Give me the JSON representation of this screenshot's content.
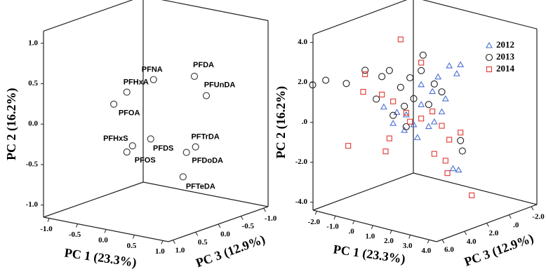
{
  "chart_data": [
    {
      "type": "scatter3d",
      "xlabel": "PC 1 (23.3%)",
      "ylabel": "PC 2 (16.2%)",
      "zlabel": "PC 3 (12.9%)",
      "xlim": [
        -1.1,
        1.1
      ],
      "ylim": [
        -1.15,
        1.15
      ],
      "zlim": [
        1.1,
        -1.1
      ],
      "xticks": [
        {
          "value": -1.0,
          "label": "-1.0"
        },
        {
          "value": -0.5,
          "label": "-0.5"
        },
        {
          "value": 0,
          "label": "0.0"
        },
        {
          "value": 0.5,
          "label": "0.5"
        },
        {
          "value": 1.0,
          "label": "1.0"
        }
      ],
      "yticks": [
        {
          "value": -1.0,
          "label": "-1.0"
        },
        {
          "value": -0.5,
          "label": "-0.5"
        },
        {
          "value": 0,
          "label": "0.0"
        },
        {
          "value": 0.5,
          "label": "0.5"
        },
        {
          "value": 1.0,
          "label": "1.0"
        }
      ],
      "zticks": [
        {
          "value": 1.0,
          "label": "1.0"
        },
        {
          "value": 0.5,
          "label": "0.5"
        },
        {
          "value": 0,
          "label": "0.0"
        },
        {
          "value": -0.5,
          "label": "-0.5"
        },
        {
          "value": -1.0,
          "label": "-1.0"
        }
      ],
      "series": [
        {
          "color": "#333333",
          "marker": "circle",
          "labels": [
            "PFNA",
            "PFDA",
            "PFUnDA",
            "PFHxA",
            "PFOA",
            "PFHxS",
            "PFOS",
            "PFDS",
            "PFTrDA",
            "PFDoDA",
            "PFTeDA"
          ],
          "x": [
            -0.04,
            0.68,
            0.89,
            -0.51,
            -0.74,
            -0.41,
            -0.51,
            -0.09,
            0.7,
            0.54,
            0.48
          ],
          "y": [
            0.48,
            0.62,
            0.41,
            0.26,
            0.08,
            -0.39,
            -0.48,
            -0.26,
            -0.25,
            -0.34,
            -0.65
          ],
          "z": [
            0,
            0,
            0,
            0,
            0,
            0,
            0,
            0,
            0,
            0,
            0
          ]
        }
      ]
    },
    {
      "type": "scatter3d",
      "xlabel": "PC 1 (23.3%)",
      "ylabel": "PC 2 (16.2%)",
      "zlabel": "PC 3 (12.9%)",
      "xlim": [
        -2.2,
        4.4
      ],
      "ylim": [
        -4.4,
        4.4
      ],
      "zlim": [
        6.5,
        -2.5
      ],
      "legend": "upper right",
      "xticks": [
        {
          "value": -2,
          "label": "-2.0"
        },
        {
          "value": -1,
          "label": "-1.0"
        },
        {
          "value": 0,
          "label": ".0"
        },
        {
          "value": 1,
          "label": "1.0"
        },
        {
          "value": 2,
          "label": "2.0"
        },
        {
          "value": 3,
          "label": "3.0"
        },
        {
          "value": 4,
          "label": "4.0"
        }
      ],
      "yticks": [
        {
          "value": -4,
          "label": "-4.0"
        },
        {
          "value": -2,
          "label": "-2.0"
        },
        {
          "value": 0,
          "label": ".0"
        },
        {
          "value": 2,
          "label": "2.0"
        },
        {
          "value": 4,
          "label": "4.0"
        }
      ],
      "zticks": [
        {
          "value": 6,
          "label": "6.0"
        },
        {
          "value": 4,
          "label": "4.0"
        },
        {
          "value": 2,
          "label": "2.0"
        },
        {
          "value": 0,
          "label": ".0"
        },
        {
          "value": -2,
          "label": "-2.0"
        }
      ],
      "series": [
        {
          "name": "2012",
          "color": "#4a6fd0",
          "marker": "triangle",
          "x": [
            -1.1,
            -0.6,
            0.0,
            0.5,
            0.9,
            1.5,
            1.8,
            2.4,
            2.8,
            3.0,
            1.3,
            2.0,
            2.2,
            0.1,
            0.7,
            1.6,
            2.6,
            2.9,
            0.9,
            -0.4
          ],
          "y": [
            0.1,
            -0.6,
            -0.8,
            -0.4,
            0.7,
            1.5,
            2.3,
            3.0,
            2.7,
            3.2,
            -0.3,
            0.6,
            1.3,
            0.0,
            -1.0,
            0.0,
            -2.1,
            -2.1,
            1.7,
            0.0
          ],
          "z": [
            2,
            2,
            2,
            2,
            2,
            2,
            2,
            2,
            2,
            2,
            2,
            2,
            2,
            2,
            2,
            2,
            2,
            2,
            2,
            2
          ]
        },
        {
          "name": "2013",
          "color": "#222222",
          "marker": "circle",
          "x": [
            -4.9,
            -4.2,
            -3.1,
            -2.1,
            -1.2,
            -0.8,
            -0.2,
            0.3,
            0.9,
            1.0,
            0.5,
            0.0,
            -0.6,
            0.1,
            1.3,
            1.6,
            2.0,
            3.0,
            3.1,
            -1.5
          ],
          "y": [
            0.3,
            0.7,
            0.8,
            1.7,
            1.6,
            2.0,
            1.3,
            1.9,
            2.4,
            3.2,
            0.9,
            0.4,
            -0.2,
            -0.6,
            0.8,
            1.9,
            1.6,
            -0.6,
            -1.1,
            0.4
          ],
          "z": [
            2,
            2,
            2,
            2,
            2,
            2,
            2,
            2,
            2,
            2,
            2,
            2,
            2,
            2,
            2,
            2,
            2,
            2,
            2,
            2
          ]
        },
        {
          "name": "2014",
          "color": "#e0362f",
          "marker": "square",
          "x": [
            -0.2,
            -2.1,
            -2.2,
            -1.2,
            -0.6,
            0.1,
            0.9,
            1.5,
            2.0,
            2.4,
            3.0,
            1.6,
            2.2,
            2.3,
            -0.8,
            -1.0,
            -3.0,
            0.3,
            3.6,
            0.9
          ],
          "y": [
            3.7,
            1.5,
            0.6,
            0.7,
            0.5,
            0.1,
            0.0,
            0.5,
            -0.1,
            -0.7,
            -0.2,
            -1.6,
            -1.8,
            -2.4,
            -1.4,
            -2.1,
            -2.3,
            -0.3,
            -3.2,
            2.8
          ],
          "z": [
            2,
            2,
            2,
            2,
            2,
            2,
            2,
            2,
            2,
            2,
            2,
            2,
            2,
            2,
            2,
            2,
            2,
            2,
            2,
            2
          ]
        }
      ]
    }
  ]
}
